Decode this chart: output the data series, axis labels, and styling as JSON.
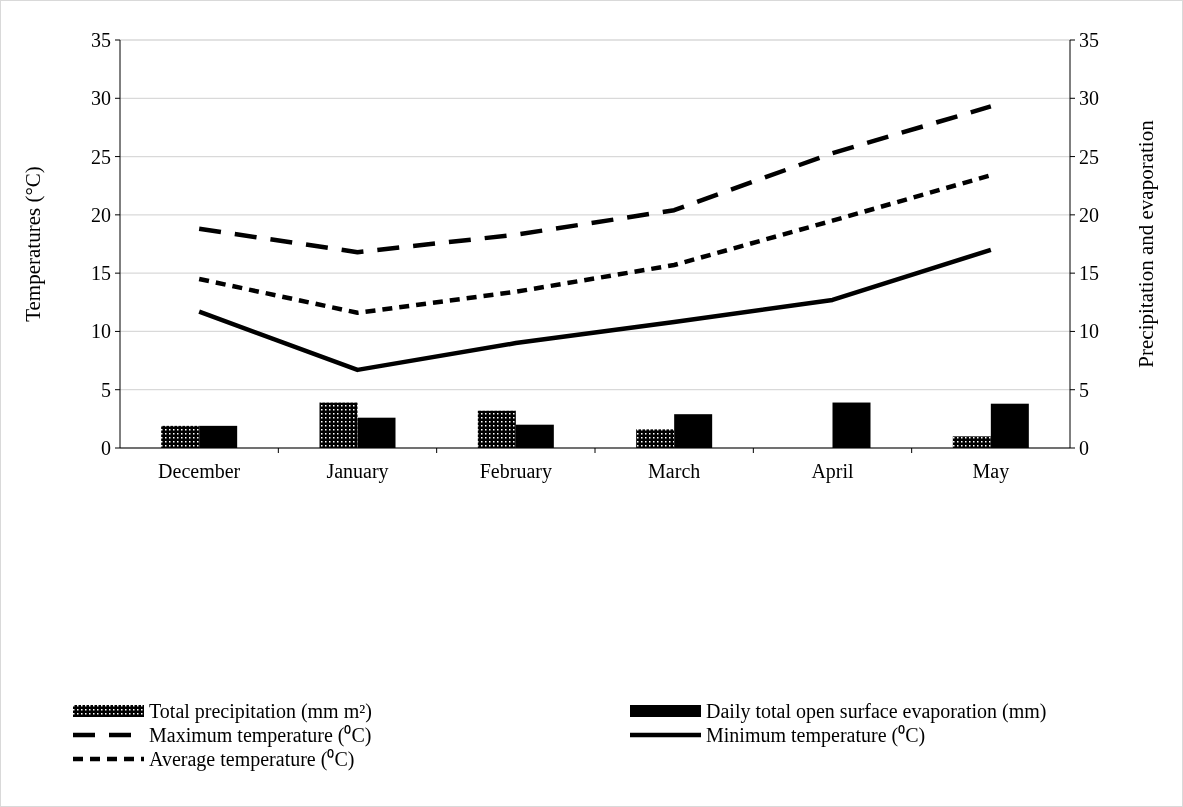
{
  "chart_data": {
    "type": "line",
    "categories": [
      "December",
      "January",
      "February",
      "March",
      "April",
      "May"
    ],
    "ylabel": "Temperatures (°C)",
    "y2label": "Precipitation and evaporation",
    "ylim": [
      0,
      35
    ],
    "yticks": [
      0,
      5,
      10,
      15,
      20,
      25,
      30,
      35
    ],
    "y2lim": [
      0,
      35
    ],
    "y2ticks": [
      0,
      5,
      10,
      15,
      20,
      25,
      30,
      35
    ],
    "grid": "y",
    "legend": "bottom",
    "marker": "none",
    "series": [
      {
        "name": "Total precipitation (mm m²)",
        "type": "bar",
        "color": "#000000",
        "values": [
          1.9,
          3.9,
          3.2,
          1.6,
          0,
          1.0
        ]
      },
      {
        "name": "Daily total open surface evaporation (mm)",
        "type": "bar",
        "color": "#000000",
        "values": [
          1.9,
          2.6,
          2.0,
          2.9,
          3.9,
          3.8
        ]
      },
      {
        "name": "Maximum temperature (⁰C)",
        "color": "#000000",
        "line_style": "dashed",
        "values": [
          18.8,
          16.8,
          18.3,
          20.4,
          25.3,
          29.3
        ]
      },
      {
        "name": "Minimum temperature (⁰C)",
        "color": "#000000",
        "line_style": "solid",
        "values": [
          11.7,
          6.7,
          9.0,
          10.8,
          12.7,
          17.0
        ]
      },
      {
        "name": "Average temperature (⁰C)",
        "color": "#000000",
        "line_style": "dotted",
        "values": [
          14.5,
          11.6,
          13.4,
          15.7,
          19.5,
          23.4
        ]
      }
    ]
  }
}
